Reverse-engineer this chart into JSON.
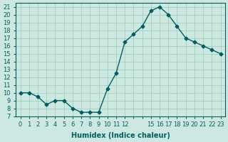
{
  "xlabel": "Humidex (Indice chaleur)",
  "x": [
    0,
    1,
    2,
    3,
    4,
    5,
    6,
    7,
    8,
    9,
    10,
    11,
    12,
    13,
    14,
    15,
    16,
    17,
    18,
    19,
    20,
    21,
    22,
    23
  ],
  "y": [
    10,
    10,
    9.5,
    8.5,
    9,
    9,
    8,
    7.5,
    7.5,
    7.5,
    10.5,
    12.5,
    16.5,
    17.5,
    18.5,
    20.5,
    21,
    20,
    18.5,
    17,
    16.5,
    16,
    15.5,
    15
  ],
  "xlim": [
    -0.5,
    23.5
  ],
  "ylim": [
    7,
    21.5
  ],
  "yticks": [
    7,
    8,
    9,
    10,
    11,
    12,
    13,
    14,
    15,
    16,
    17,
    18,
    19,
    20,
    21
  ],
  "xticks_all": [
    0,
    1,
    2,
    3,
    4,
    5,
    6,
    7,
    8,
    9,
    10,
    11,
    12,
    13,
    14,
    15,
    16,
    17,
    18,
    19,
    20,
    21,
    22,
    23
  ],
  "xtick_hidden": [
    13,
    14
  ],
  "line_color": "#006060",
  "marker": "D",
  "marker_size": 2.5,
  "bg_color": "#cce8e0",
  "grid_color": "#99ccbb",
  "axis_color": "#006060",
  "label_fontsize": 7,
  "tick_fontsize": 6
}
